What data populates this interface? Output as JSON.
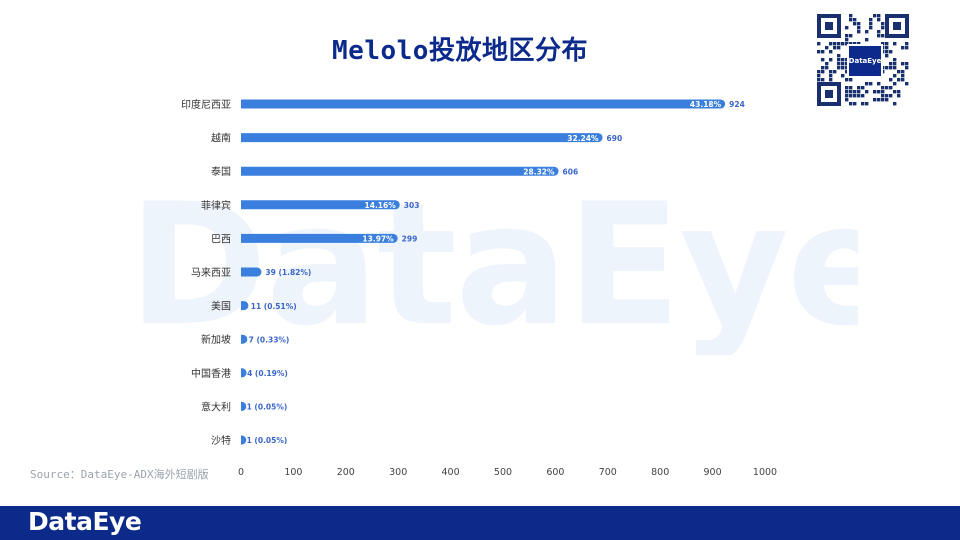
{
  "title": "Melolo投放地区分布",
  "watermark": "DataEye",
  "qr_badge": "DataEye",
  "source": "Source：DataEye-ADX海外短剧版",
  "footer_logo": "DataEye",
  "colors": {
    "bar": "#3a7fde",
    "label": "#3a66c9",
    "title": "#0b2a8c",
    "footer": "#0c2a8a"
  },
  "chart_data": {
    "type": "bar",
    "orientation": "horizontal",
    "categories": [
      "印度尼西亚",
      "越南",
      "泰国",
      "菲律宾",
      "巴西",
      "马来西亚",
      "美国",
      "新加坡",
      "中国香港",
      "意大利",
      "沙特"
    ],
    "values": [
      924,
      690,
      606,
      303,
      299,
      39,
      11,
      7,
      4,
      1,
      1
    ],
    "percents": [
      "43.18%",
      "32.24%",
      "28.32%",
      "14.16%",
      "13.97%",
      "1.82%",
      "0.51%",
      "0.33%",
      "0.19%",
      "0.05%",
      "0.05%"
    ],
    "xlim": [
      0,
      1000
    ],
    "xticks": [
      0,
      100,
      200,
      300,
      400,
      500,
      600,
      700,
      800,
      900,
      1000
    ],
    "grid": false,
    "legend": "none"
  }
}
